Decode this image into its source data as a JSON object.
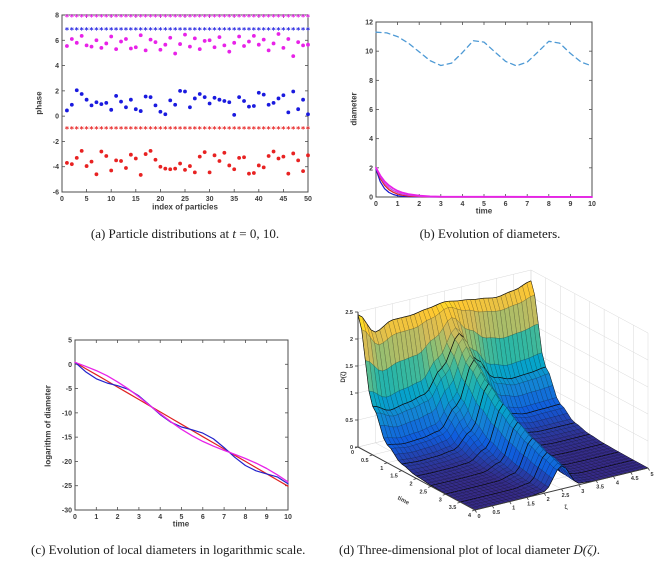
{
  "figure": {
    "background": "#ffffff",
    "captions": {
      "a_pre": "(a) Particle distributions at ",
      "a_math": "t",
      "a_post": " = 0, 10.",
      "b": "(b) Evolution of diameters.",
      "c": "(c) Evolution of local diameters in logarithmic scale.",
      "d_pre": "(d) Three-dimensional plot of local diameter ",
      "d_math": "D(ζ)",
      "d_post": "."
    }
  },
  "colors": {
    "axis": "#4d4d4d",
    "tick_label": "#3d3d3d",
    "grid3d": "#d9d9d9",
    "magenta": "#e822e8",
    "blue": "#1a1adf",
    "red": "#e82222",
    "dashed_blue": "#4e9ad5",
    "violet": "#c04ae0"
  },
  "chart_data": [
    {
      "panel": "a",
      "type": "scatter",
      "xlabel": "index of particles",
      "ylabel": "phase",
      "xlim": [
        0,
        50
      ],
      "ylim": [
        -6,
        8
      ],
      "xticks": [
        0,
        5,
        10,
        15,
        20,
        25,
        30,
        35,
        40,
        45,
        50
      ],
      "yticks": [
        -6,
        -4,
        -2,
        0,
        2,
        4,
        6,
        8
      ],
      "series": [
        {
          "name": "synchronized cluster t=10 magenta",
          "marker": "asterisk",
          "color": "#e822e8",
          "const_y": 7.85,
          "count": 50
        },
        {
          "name": "synchronized cluster t=10 blue",
          "marker": "asterisk",
          "color": "#1a1adf",
          "const_y": 6.8,
          "count": 50
        },
        {
          "name": "synchronized cluster t=10 red",
          "marker": "asterisk",
          "color": "#e82222",
          "const_y": -1.0,
          "count": 50
        },
        {
          "name": "initial phases t=0 magenta",
          "marker": "dot",
          "color": "#e822e8",
          "y": [
            5.55,
            6.1,
            5.8,
            6.35,
            5.6,
            5.5,
            6.0,
            5.4,
            5.75,
            6.3,
            5.3,
            5.9,
            6.1,
            5.35,
            5.45,
            6.4,
            5.2,
            6.05,
            5.85,
            5.25,
            5.65,
            6.2,
            4.95,
            5.7,
            6.45,
            5.5,
            6.15,
            5.3,
            5.95,
            6.0,
            5.45,
            6.25,
            5.6,
            5.1,
            5.8,
            6.3,
            5.55,
            5.9,
            6.35,
            5.65,
            6.05,
            5.2,
            5.75,
            6.5,
            5.4,
            6.1,
            4.75,
            5.85,
            5.6,
            5.65
          ]
        },
        {
          "name": "initial phases t=0 blue",
          "marker": "dot",
          "color": "#1a1adf",
          "y": [
            0.45,
            0.9,
            2.05,
            1.75,
            1.3,
            0.85,
            1.1,
            0.95,
            1.05,
            0.5,
            1.6,
            1.15,
            0.7,
            1.3,
            0.55,
            0.4,
            1.55,
            1.5,
            0.85,
            0.35,
            0.15,
            1.25,
            0.9,
            2.0,
            1.95,
            0.7,
            1.4,
            1.75,
            1.5,
            1.0,
            1.45,
            1.3,
            1.2,
            1.1,
            0.1,
            1.5,
            1.2,
            0.75,
            0.8,
            1.85,
            1.7,
            0.9,
            1.05,
            1.4,
            1.65,
            0.3,
            1.95,
            0.55,
            1.3,
            0.15
          ]
        },
        {
          "name": "initial phases t=0 red",
          "marker": "dot",
          "color": "#e82222",
          "y": [
            -3.7,
            -3.8,
            -3.3,
            -2.75,
            -3.95,
            -3.6,
            -4.6,
            -2.8,
            -3.15,
            -4.3,
            -3.5,
            -3.55,
            -4.1,
            -3.05,
            -3.35,
            -4.65,
            -3.0,
            -2.75,
            -3.45,
            -4.0,
            -4.15,
            -4.2,
            -4.15,
            -3.75,
            -4.25,
            -3.95,
            -4.45,
            -3.2,
            -2.85,
            -4.45,
            -3.1,
            -3.55,
            -2.9,
            -3.9,
            -4.2,
            -3.3,
            -3.25,
            -4.55,
            -4.5,
            -3.9,
            -4.05,
            -3.15,
            -2.8,
            -3.35,
            -3.2,
            -4.55,
            -2.95,
            -3.5,
            -4.35,
            -3.1
          ]
        }
      ]
    },
    {
      "panel": "b",
      "type": "line",
      "xlabel": "time",
      "ylabel": "diameter",
      "xlim": [
        0,
        10
      ],
      "ylim": [
        0,
        12
      ],
      "xticks": [
        0,
        1,
        2,
        3,
        4,
        5,
        6,
        7,
        8,
        9,
        10
      ],
      "yticks": [
        0,
        2,
        4,
        6,
        8,
        10,
        12
      ],
      "series": [
        {
          "name": "global diameter (dashed)",
          "color": "#4e9ad5",
          "width": 1.3,
          "dash": "5,4",
          "x": [
            0,
            0.5,
            1,
            1.5,
            2,
            2.5,
            3,
            3.5,
            4,
            4.5,
            5,
            5.5,
            6,
            6.5,
            7,
            7.5,
            8,
            8.5,
            9,
            9.5,
            10
          ],
          "y": [
            11.3,
            11.25,
            11.0,
            10.55,
            9.95,
            9.35,
            9.02,
            9.18,
            9.9,
            10.72,
            10.62,
            9.95,
            9.3,
            9.0,
            9.25,
            9.95,
            10.68,
            10.55,
            9.85,
            9.25,
            8.98
          ]
        },
        {
          "name": "local diameter blue",
          "color": "#1515cf",
          "width": 1.2,
          "x": [
            0,
            0.2,
            0.4,
            0.6,
            0.8,
            1,
            1.2,
            1.5,
            2,
            2.5,
            3,
            10
          ],
          "y": [
            1.9,
            1.04,
            0.57,
            0.31,
            0.17,
            0.09,
            0.05,
            0.02,
            0.005,
            0,
            0,
            0
          ]
        },
        {
          "name": "local diameter red",
          "color": "#e02020",
          "width": 1.2,
          "x": [
            0,
            0.2,
            0.4,
            0.6,
            0.8,
            1,
            1.2,
            1.5,
            2,
            2.5,
            3,
            10
          ],
          "y": [
            2,
            1.26,
            0.8,
            0.5,
            0.32,
            0.2,
            0.13,
            0.06,
            0.02,
            0.006,
            0,
            0
          ]
        },
        {
          "name": "local diameter violet",
          "color": "#c04ae0",
          "width": 1.2,
          "x": [
            0,
            0.2,
            0.4,
            0.6,
            0.8,
            1,
            1.2,
            1.5,
            2,
            2.5,
            3,
            10
          ],
          "y": [
            2,
            1.37,
            0.93,
            0.64,
            0.44,
            0.3,
            0.2,
            0.12,
            0.045,
            0.017,
            0.006,
            0
          ]
        },
        {
          "name": "local diameter magenta",
          "color": "#e822e8",
          "width": 1.8,
          "x": [
            0,
            0.2,
            0.4,
            0.6,
            0.8,
            1,
            1.2,
            1.5,
            2,
            2.5,
            3,
            10
          ],
          "y": [
            2,
            1.47,
            1.07,
            0.79,
            0.58,
            0.42,
            0.31,
            0.2,
            0.09,
            0.04,
            0.019,
            0
          ]
        }
      ]
    },
    {
      "panel": "c",
      "type": "line",
      "xlabel": "time",
      "ylabel": "logarithm of diameter",
      "xlim": [
        0,
        10
      ],
      "ylim": [
        -30,
        5
      ],
      "xticks": [
        0,
        1,
        2,
        3,
        4,
        5,
        6,
        7,
        8,
        9,
        10
      ],
      "yticks": [
        -30,
        -25,
        -20,
        -15,
        -10,
        -5,
        0,
        5
      ],
      "x_shared": [
        0,
        0.5,
        1,
        1.5,
        2,
        2.5,
        3,
        3.5,
        4,
        4.5,
        5,
        5.5,
        6,
        6.5,
        7,
        7.5,
        8,
        8.5,
        9,
        9.5,
        10
      ],
      "series": [
        {
          "name": "log diameter red",
          "color": "#e02020",
          "width": 1.2,
          "y": [
            0.4,
            -0.88,
            -2.15,
            -3.43,
            -4.7,
            -5.98,
            -7.25,
            -8.53,
            -9.8,
            -11.08,
            -12.35,
            -13.63,
            -14.9,
            -16.18,
            -17.45,
            -18.73,
            -20.0,
            -21.28,
            -22.55,
            -23.83,
            -25.1
          ]
        },
        {
          "name": "log diameter blue",
          "color": "#2222cc",
          "width": 1.2,
          "y": [
            0.4,
            -1.53,
            -2.99,
            -3.85,
            -4.41,
            -5.18,
            -6.51,
            -8.38,
            -10.35,
            -11.93,
            -12.91,
            -13.48,
            -14.17,
            -15.37,
            -17.15,
            -19.14,
            -20.84,
            -21.93,
            -22.56,
            -23.18,
            -24.6
          ]
        },
        {
          "name": "log diameter magenta",
          "color": "#e822e8",
          "width": 1.3,
          "y": [
            0.4,
            -0.41,
            -1.31,
            -2.36,
            -3.62,
            -5.07,
            -6.7,
            -8.43,
            -10.17,
            -11.85,
            -13.38,
            -14.73,
            -15.88,
            -16.86,
            -17.72,
            -18.53,
            -19.39,
            -20.35,
            -21.46,
            -22.75,
            -24.21
          ]
        }
      ]
    },
    {
      "panel": "d",
      "type": "surface_3d",
      "xlabel": "time",
      "ylabel": "ζ",
      "zlabel": "D(ζ)",
      "tlim": [
        0,
        4
      ],
      "zetalim": [
        0,
        5
      ],
      "zlim": [
        0,
        2.5
      ],
      "t_ticks": [
        0,
        0.5,
        1,
        1.5,
        2,
        2.5,
        3,
        3.5,
        4
      ],
      "zeta_ticks": [
        0,
        0.5,
        1,
        1.5,
        2,
        2.5,
        3,
        3.5,
        4,
        4.5,
        5
      ],
      "z_ticks": [
        0,
        0.5,
        1,
        1.5,
        2,
        2.5
      ],
      "colormap": [
        "#352a87",
        "#0f5cdd",
        "#1481d6",
        "#06a4ca",
        "#2eb7a4",
        "#87bf77",
        "#d1bb59",
        "#fec832",
        "#f9fb0e"
      ],
      "t_values": [
        0,
        0.5,
        1,
        1.5,
        2,
        2.5,
        3,
        3.5,
        4
      ],
      "zeta_values": [
        0,
        0.5,
        1,
        1.5,
        2,
        2.5,
        3,
        3.5,
        4,
        4.5,
        5
      ],
      "z_grid": [
        [
          2.45,
          2.05,
          2.2,
          2.2,
          2.25,
          2.3,
          2.25,
          2.2,
          2.15,
          2.2,
          2.3
        ],
        [
          0.9,
          0.75,
          0.81,
          0.89,
          1.3,
          1.86,
          1.3,
          0.89,
          0.79,
          0.81,
          0.85
        ],
        [
          0.33,
          0.28,
          0.3,
          0.36,
          0.75,
          1.51,
          0.75,
          0.36,
          0.29,
          0.3,
          0.31
        ],
        [
          0.12,
          0.1,
          0.11,
          0.15,
          0.43,
          1.22,
          0.43,
          0.15,
          0.11,
          0.11,
          0.11
        ],
        [
          0.045,
          0.038,
          0.04,
          0.06,
          0.25,
          0.99,
          0.25,
          0.06,
          0.039,
          0.04,
          0.042
        ],
        [
          0.017,
          0.014,
          0.015,
          0.024,
          0.144,
          0.8,
          0.144,
          0.024,
          0.014,
          0.015,
          0.015
        ],
        [
          0.006,
          0.005,
          0.005,
          0.01,
          0.083,
          0.65,
          0.083,
          0.01,
          0.005,
          0.005,
          0.006
        ],
        [
          0.002,
          0.002,
          0.002,
          0.004,
          0.048,
          0.53,
          0.048,
          0.004,
          0.002,
          0.002,
          0.002
        ],
        [
          0.001,
          0.001,
          0.001,
          0.002,
          0.028,
          0.43,
          0.028,
          0.002,
          0.001,
          0.001,
          0.001
        ]
      ]
    }
  ]
}
